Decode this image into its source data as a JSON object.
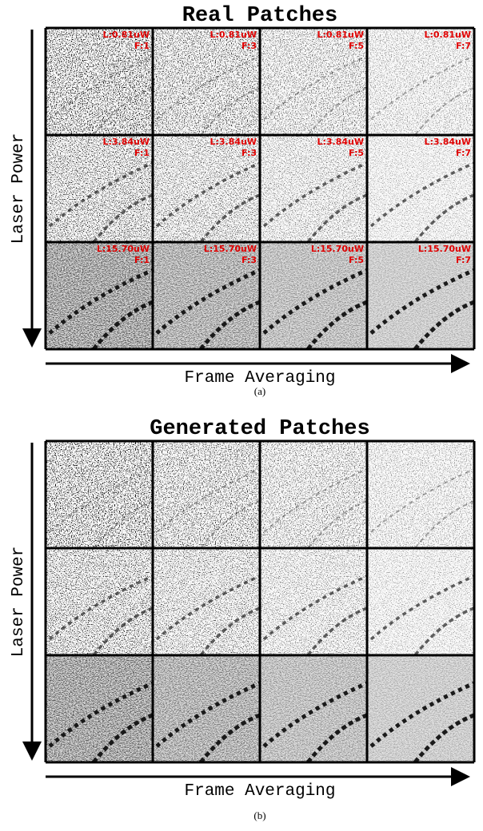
{
  "panels": [
    {
      "title": "Real Patches",
      "y_axis_label": "Laser Power",
      "x_axis_label": "Frame Averaging",
      "caption": "(a)",
      "rows": [
        {
          "cells": [
            {
              "laser": "L:0.81uW",
              "frames": "F:1"
            },
            {
              "laser": "L:0.81uW",
              "frames": "F:3"
            },
            {
              "laser": "L:0.81uW",
              "frames": "F:5"
            },
            {
              "laser": "L:0.81uW",
              "frames": "F:7"
            }
          ]
        },
        {
          "cells": [
            {
              "laser": "L:3.84uW",
              "frames": "F:1"
            },
            {
              "laser": "L:3.84uW",
              "frames": "F:3"
            },
            {
              "laser": "L:3.84uW",
              "frames": "F:5"
            },
            {
              "laser": "L:3.84uW",
              "frames": "F:7"
            }
          ]
        },
        {
          "cells": [
            {
              "laser": "L:15.70uW",
              "frames": "F:1"
            },
            {
              "laser": "L:15.70uW",
              "frames": "F:3"
            },
            {
              "laser": "L:15.70uW",
              "frames": "F:5"
            },
            {
              "laser": "L:15.70uW",
              "frames": "F:7"
            }
          ]
        }
      ]
    },
    {
      "title": "Generated Patches",
      "y_axis_label": "Laser Power",
      "x_axis_label": "Frame Averaging",
      "caption": "(b)"
    }
  ]
}
